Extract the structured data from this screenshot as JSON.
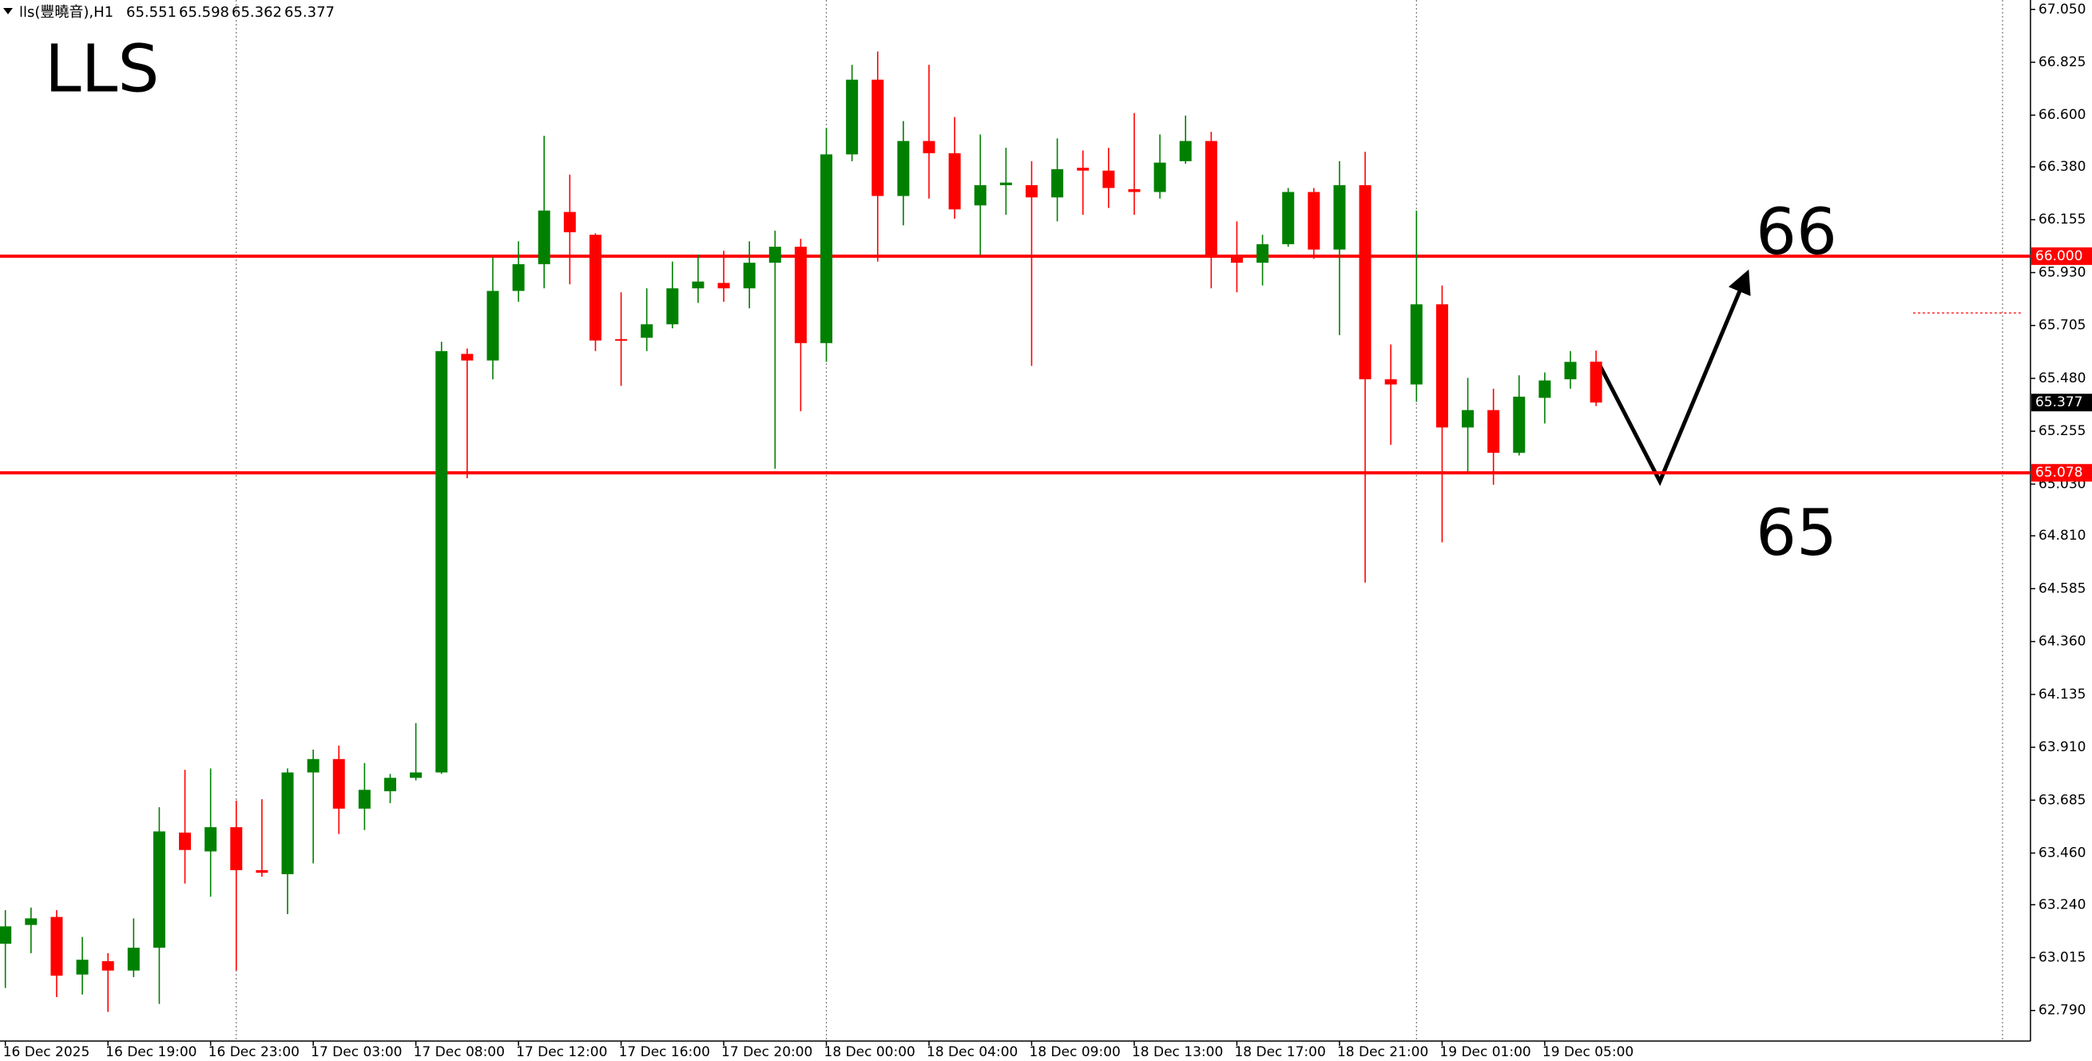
{
  "chart_data": {
    "type": "candlestick",
    "symbol": "lls(豐曉音),H1",
    "title": "LLS",
    "annotations": [
      "66",
      "65"
    ],
    "up_color": "#008000",
    "down_color": "#ff0000",
    "categories": [
      "16 Dec 2025",
      null,
      null,
      null,
      "16 Dec 19:00",
      null,
      null,
      null,
      "16 Dec 23:00",
      null,
      null,
      null,
      "17 Dec 03:00",
      null,
      null,
      null,
      "17 Dec 08:00",
      null,
      null,
      null,
      "17 Dec 12:00",
      null,
      null,
      null,
      "17 Dec 16:00",
      null,
      null,
      null,
      "17 Dec 20:00",
      null,
      null,
      null,
      "18 Dec 00:00",
      null,
      null,
      null,
      "18 Dec 04:00",
      null,
      null,
      null,
      "18 Dec 09:00",
      null,
      null,
      null,
      "18 Dec 13:00",
      null,
      null,
      null,
      "18 Dec 17:00",
      null,
      null,
      null,
      "18 Dec 21:00",
      null,
      null,
      null,
      "19 Dec 01:00",
      null,
      null,
      null,
      "19 Dec 05:00",
      null,
      null
    ],
    "open": [
      63.074,
      63.154,
      63.188,
      62.943,
      63.0,
      62.96,
      63.057,
      63.547,
      63.467,
      63.57,
      63.387,
      63.37,
      63.803,
      63.86,
      63.649,
      63.723,
      63.78,
      63.803,
      65.584,
      65.556,
      65.852,
      65.966,
      66.188,
      66.091,
      65.647,
      65.653,
      65.71,
      65.863,
      65.886,
      65.863,
      65.972,
      66.04,
      65.63,
      66.433,
      66.751,
      66.256,
      66.49,
      66.438,
      66.216,
      66.302,
      66.302,
      66.25,
      66.376,
      66.364,
      66.285,
      66.273,
      66.404,
      66.49,
      65.994,
      65.972,
      66.051,
      66.273,
      66.028,
      66.302,
      65.476,
      65.454,
      65.795,
      65.271,
      65.345,
      65.163,
      65.397,
      65.476,
      65.551
    ],
    "high": [
      63.217,
      63.228,
      63.217,
      63.103,
      63.034,
      63.182,
      63.655,
      63.814,
      63.82,
      63.683,
      63.689,
      63.82,
      63.9,
      63.917,
      63.843,
      63.797,
      64.013,
      65.636,
      65.607,
      65.994,
      66.063,
      66.512,
      66.347,
      66.097,
      65.846,
      65.863,
      65.977,
      66.006,
      66.023,
      66.063,
      66.108,
      66.074,
      66.546,
      66.814,
      66.871,
      66.575,
      66.814,
      66.592,
      66.518,
      66.461,
      66.404,
      66.501,
      66.45,
      66.461,
      66.609,
      66.518,
      66.598,
      66.529,
      66.148,
      66.091,
      66.29,
      66.29,
      66.404,
      66.444,
      65.624,
      66.194,
      65.875,
      65.482,
      65.436,
      65.493,
      65.505,
      65.596,
      65.598
    ],
    "low": [
      62.886,
      63.034,
      62.847,
      62.858,
      62.784,
      62.932,
      62.818,
      63.33,
      63.274,
      62.96,
      63.359,
      63.2,
      63.416,
      63.541,
      63.558,
      63.672,
      63.769,
      63.797,
      65.055,
      65.476,
      65.806,
      65.863,
      65.88,
      65.596,
      65.448,
      65.596,
      65.693,
      65.801,
      65.806,
      65.778,
      65.095,
      65.34,
      65.55,
      66.404,
      65.977,
      66.131,
      66.245,
      66.159,
      66.006,
      66.176,
      65.533,
      66.148,
      66.176,
      66.205,
      66.176,
      66.245,
      66.393,
      65.863,
      65.846,
      65.875,
      66.04,
      65.989,
      65.664,
      64.611,
      65.197,
      65.38,
      64.782,
      65.084,
      65.027,
      65.152,
      65.288,
      65.436,
      65.362
    ],
    "close": [
      63.148,
      63.182,
      62.938,
      63.006,
      62.96,
      63.057,
      63.552,
      63.473,
      63.57,
      63.387,
      63.376,
      63.803,
      63.86,
      63.649,
      63.729,
      63.78,
      63.803,
      65.596,
      65.556,
      65.852,
      65.966,
      66.194,
      66.102,
      65.641,
      65.641,
      65.71,
      65.863,
      65.892,
      65.863,
      65.972,
      66.04,
      65.63,
      66.433,
      66.751,
      66.256,
      66.49,
      66.438,
      66.199,
      66.302,
      66.313,
      66.25,
      66.37,
      66.364,
      66.29,
      66.273,
      66.398,
      66.49,
      65.994,
      65.972,
      66.051,
      66.273,
      66.028,
      66.302,
      65.476,
      65.454,
      65.795,
      65.271,
      65.345,
      65.163,
      65.402,
      65.471,
      65.55,
      65.377
    ],
    "ylim": [
      62.66,
      67.09
    ],
    "yticks": [
      {
        "value": 67.05,
        "label": "67.050"
      },
      66.825,
      {
        "value": 66.6,
        "label": "66.600"
      },
      {
        "value": 66.38,
        "label": "66.380"
      },
      66.155,
      {
        "value": 65.93,
        "label": "65.930"
      },
      65.705,
      {
        "value": 65.48,
        "label": "65.480"
      },
      65.255,
      {
        "value": 65.03,
        "label": "65.030"
      },
      {
        "value": 64.81,
        "label": "64.810"
      },
      64.585,
      {
        "value": 64.36,
        "label": "64.360"
      },
      64.135,
      {
        "value": 63.91,
        "label": "63.910"
      },
      63.685,
      {
        "value": 63.46,
        "label": "63.460"
      },
      {
        "value": 63.24,
        "label": "63.240"
      },
      63.015,
      {
        "value": 62.79,
        "label": "62.790"
      }
    ],
    "hlines": [
      {
        "value": 66,
        "label": "66.000",
        "color": "#ff0000"
      },
      {
        "value": 65.078,
        "label": "65.078",
        "color": "#ff0000"
      }
    ]
  }
}
